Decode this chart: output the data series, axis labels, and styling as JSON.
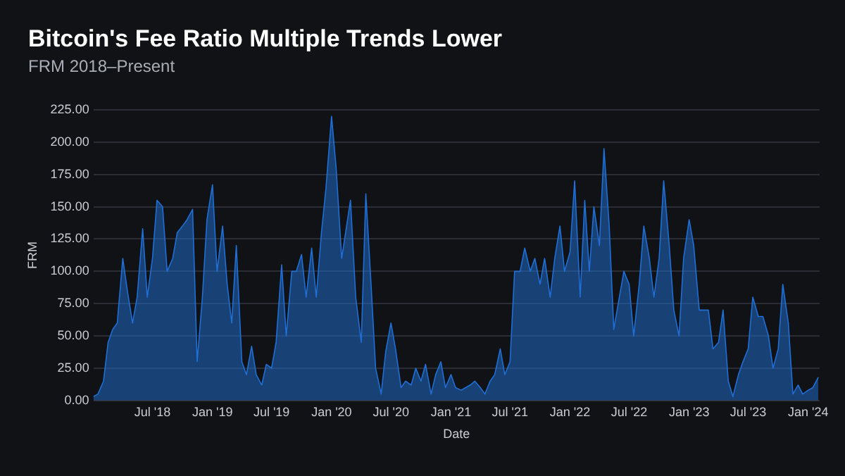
{
  "chart_data": {
    "type": "area",
    "title": "Bitcoin's Fee Ratio Multiple Trends Lower",
    "subtitle": "FRM 2018–Present",
    "xlabel": "Date",
    "ylabel": "FRM",
    "x": [
      "2018-01-01",
      "2018-01-15",
      "2018-02-01",
      "2018-02-15",
      "2018-03-01",
      "2018-03-15",
      "2018-04-01",
      "2018-04-15",
      "2018-05-01",
      "2018-05-15",
      "2018-06-01",
      "2018-06-15",
      "2018-07-01",
      "2018-07-15",
      "2018-08-01",
      "2018-08-15",
      "2018-09-01",
      "2018-09-15",
      "2018-10-01",
      "2018-10-15",
      "2018-11-01",
      "2018-11-15",
      "2018-12-01",
      "2018-12-15",
      "2019-01-01",
      "2019-01-15",
      "2019-02-01",
      "2019-02-15",
      "2019-03-01",
      "2019-03-15",
      "2019-04-01",
      "2019-04-15",
      "2019-05-01",
      "2019-05-15",
      "2019-06-01",
      "2019-06-15",
      "2019-07-01",
      "2019-07-15",
      "2019-08-01",
      "2019-08-15",
      "2019-09-01",
      "2019-09-15",
      "2019-10-01",
      "2019-10-15",
      "2019-11-01",
      "2019-11-15",
      "2019-12-01",
      "2019-12-15",
      "2020-01-01",
      "2020-01-15",
      "2020-02-01",
      "2020-02-28",
      "2020-03-15",
      "2020-04-01",
      "2020-04-15",
      "2020-05-01",
      "2020-05-15",
      "2020-06-01",
      "2020-06-15",
      "2020-07-01",
      "2020-07-15",
      "2020-08-01",
      "2020-08-15",
      "2020-09-01",
      "2020-09-15",
      "2020-10-01",
      "2020-10-15",
      "2020-11-01",
      "2020-11-15",
      "2020-12-01",
      "2020-12-15",
      "2021-01-01",
      "2021-01-15",
      "2021-02-01",
      "2021-02-15",
      "2021-03-01",
      "2021-03-15",
      "2021-04-01",
      "2021-04-15",
      "2021-05-01",
      "2021-05-15",
      "2021-06-01",
      "2021-06-15",
      "2021-07-01",
      "2021-07-15",
      "2021-08-01",
      "2021-08-15",
      "2021-09-01",
      "2021-09-15",
      "2021-10-01",
      "2021-10-15",
      "2021-11-01",
      "2021-11-15",
      "2021-12-01",
      "2021-12-15",
      "2022-01-01",
      "2022-01-15",
      "2022-02-01",
      "2022-02-15",
      "2022-03-01",
      "2022-03-15",
      "2022-04-01",
      "2022-04-15",
      "2022-05-01",
      "2022-05-15",
      "2022-06-01",
      "2022-06-15",
      "2022-07-01",
      "2022-07-15",
      "2022-08-01",
      "2022-08-15",
      "2022-09-01",
      "2022-09-15",
      "2022-10-01",
      "2022-10-15",
      "2022-11-01",
      "2022-11-15",
      "2022-12-01",
      "2022-12-15",
      "2023-01-01",
      "2023-01-15",
      "2023-02-01",
      "2023-02-15",
      "2023-03-01",
      "2023-03-15",
      "2023-04-01",
      "2023-04-15",
      "2023-05-01",
      "2023-05-15",
      "2023-06-01",
      "2023-06-15",
      "2023-07-01",
      "2023-07-15",
      "2023-08-01",
      "2023-08-15",
      "2023-09-01",
      "2023-09-15",
      "2023-10-01",
      "2023-10-15",
      "2023-11-01",
      "2023-11-15",
      "2023-12-01",
      "2023-12-15",
      "2024-01-01",
      "2024-01-15",
      "2024-02-01"
    ],
    "series": [
      {
        "color": "#1f6fd6",
        "values": [
          3,
          5,
          15,
          45,
          55,
          60,
          110,
          85,
          60,
          80,
          133,
          80,
          110,
          155,
          150,
          100,
          110,
          130,
          135,
          140,
          148,
          30,
          80,
          140,
          167,
          100,
          135,
          90,
          60,
          120,
          30,
          20,
          42,
          20,
          12,
          28,
          25,
          45,
          105,
          50,
          100,
          100,
          113,
          80,
          118,
          80,
          130,
          165,
          220,
          180,
          110,
          155,
          80,
          45,
          160,
          90,
          25,
          5,
          38,
          60,
          40,
          10,
          15,
          12,
          25,
          15,
          28,
          5,
          20,
          30,
          10,
          20,
          10,
          8,
          10,
          12,
          15,
          10,
          5,
          15,
          20,
          40,
          20,
          30,
          100,
          100,
          118,
          100,
          110,
          90,
          110,
          80,
          110,
          135,
          100,
          115,
          170,
          80,
          155,
          100,
          150,
          120,
          195,
          135,
          55,
          80,
          100,
          90,
          50,
          90,
          135,
          110,
          80,
          110,
          170,
          120,
          70,
          50,
          110,
          140,
          120,
          70,
          70,
          70,
          40,
          45,
          70,
          15,
          3,
          20,
          30,
          40,
          80,
          65,
          65,
          50,
          25,
          40,
          90,
          60,
          5,
          12,
          5,
          8,
          10,
          18
        ]
      }
    ],
    "xlim": [
      "2018-01-01",
      "2024-02-05"
    ],
    "xticks": [
      {
        "value": "2018-07-01",
        "label": "Jul '18"
      },
      {
        "value": "2019-01-01",
        "label": "Jan '19"
      },
      {
        "value": "2019-07-01",
        "label": "Jul '19"
      },
      {
        "value": "2020-01-01",
        "label": "Jan '20"
      },
      {
        "value": "2020-07-01",
        "label": "Jul '20"
      },
      {
        "value": "2021-01-01",
        "label": "Jan '21"
      },
      {
        "value": "2021-07-01",
        "label": "Jul '21"
      },
      {
        "value": "2022-01-01",
        "label": "Jan '22"
      },
      {
        "value": "2022-07-01",
        "label": "Jul '22"
      },
      {
        "value": "2023-01-01",
        "label": "Jan '23"
      },
      {
        "value": "2023-07-01",
        "label": "Jul '23"
      },
      {
        "value": "2024-01-01",
        "label": "Jan '24"
      }
    ],
    "ylim": [
      0,
      225
    ],
    "yticks": [
      {
        "value": 0,
        "label": "0.00"
      },
      {
        "value": 25,
        "label": "25.00"
      },
      {
        "value": 50,
        "label": "50.00"
      },
      {
        "value": 75,
        "label": "75.00"
      },
      {
        "value": 100,
        "label": "100.00"
      },
      {
        "value": 125,
        "label": "125.00"
      },
      {
        "value": 150,
        "label": "150.00"
      },
      {
        "value": 175,
        "label": "175.00"
      },
      {
        "value": 200,
        "label": "200.00"
      },
      {
        "value": 225,
        "label": "225.00"
      }
    ],
    "grid": "y",
    "legend": false
  }
}
